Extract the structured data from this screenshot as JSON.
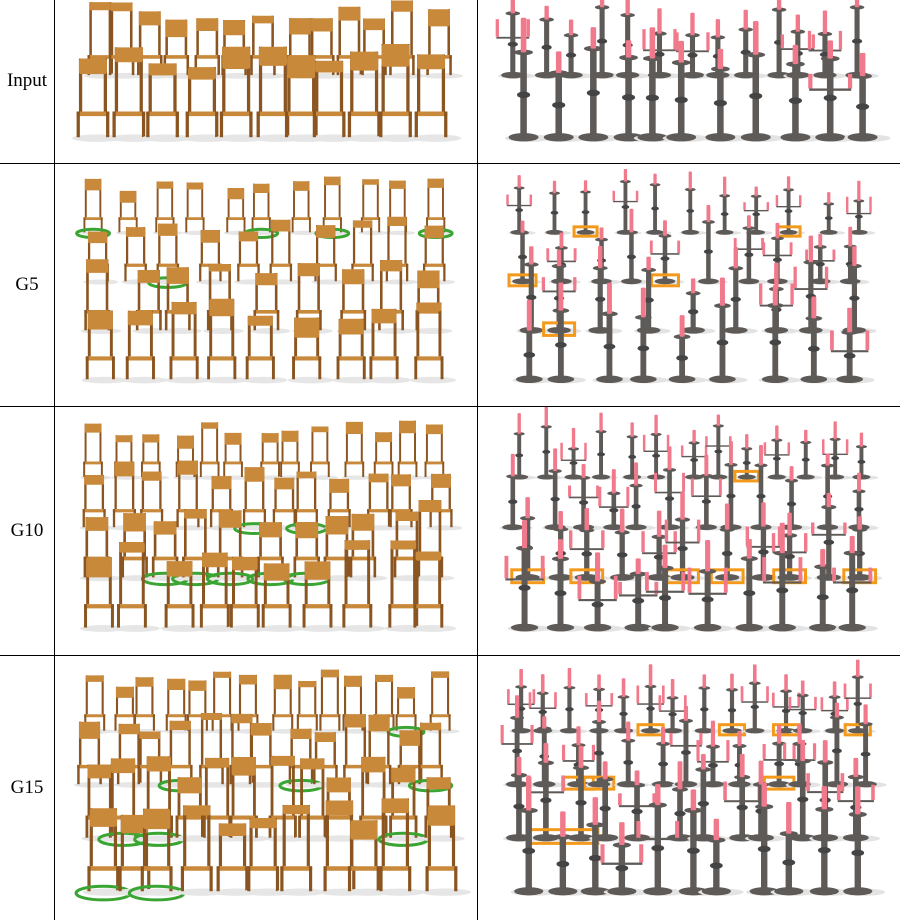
{
  "rows": [
    {
      "label": "Input"
    },
    {
      "label": "G5"
    },
    {
      "label": "G10"
    },
    {
      "label": "G15"
    }
  ],
  "colors": {
    "chair_wood": "#c9893b",
    "chair_dark": "#8a5520",
    "green_ring": "#3aa532",
    "candle_metal": "#5e5a57",
    "candle_wax": "#f07a8c",
    "orange_box": "#f39a1c"
  },
  "columns": [
    {
      "content": "chair-collections"
    },
    {
      "content": "candlestick-collections"
    }
  ]
}
